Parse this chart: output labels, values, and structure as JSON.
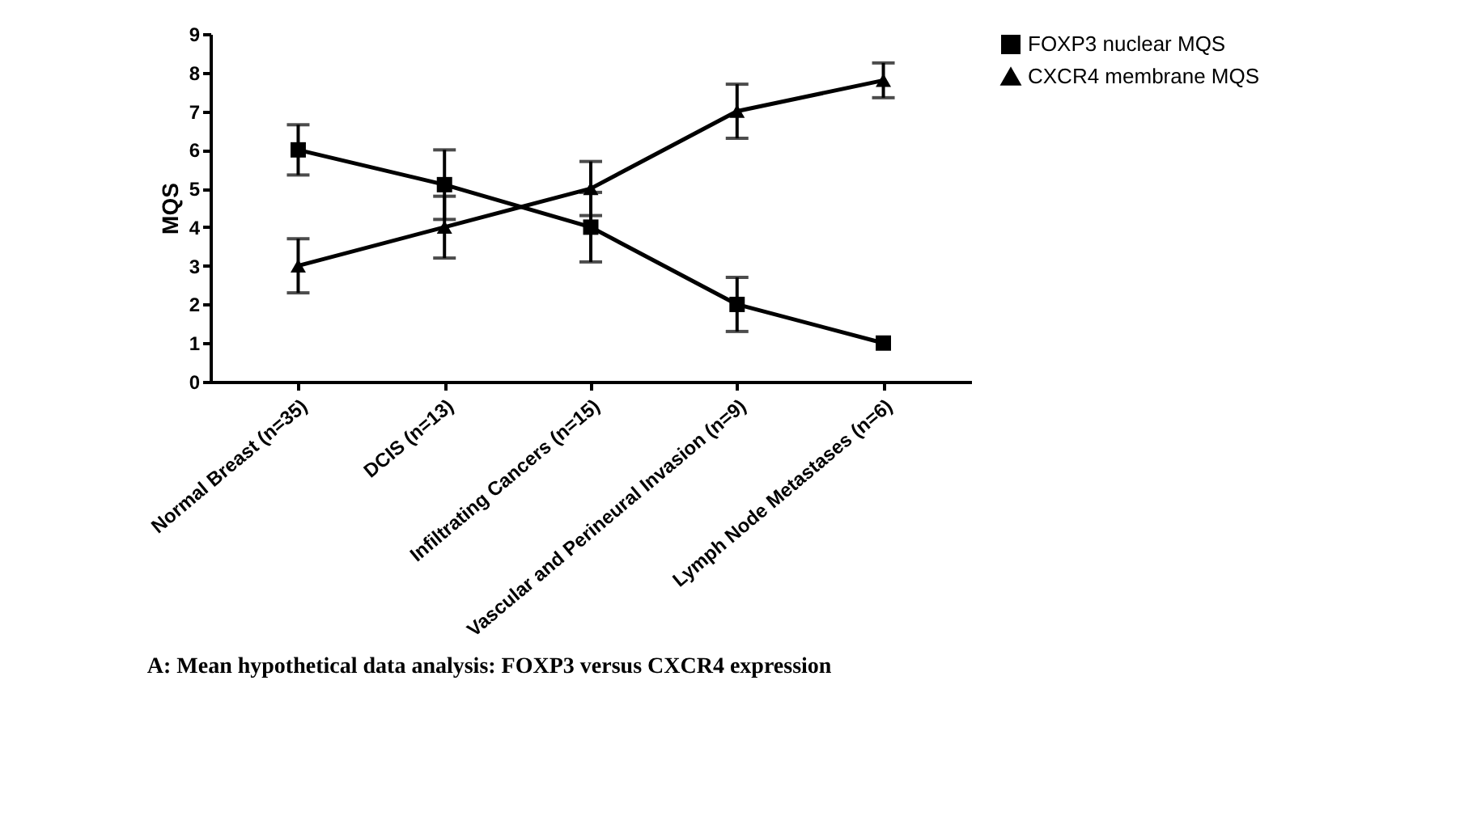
{
  "chart_data": {
    "type": "line",
    "ylabel": "MQS",
    "categories": [
      "Normal Breast (n=35)",
      "DCIS (n=13)",
      "Infiltrating Cancers (n=15)",
      "Vascular and Perineural Invasion (n=9)",
      "Lymph Node Metastases (n=6)"
    ],
    "series": [
      {
        "name": "FOXP3 nuclear MQS",
        "color": "#000000",
        "marker": "square",
        "values": [
          6,
          5.1,
          4,
          2,
          1
        ],
        "errors": [
          0.65,
          0.9,
          0.9,
          0.7,
          null
        ]
      },
      {
        "name": "CXCR4 membrane MQS",
        "color": "#000000",
        "marker": "triangle",
        "values": [
          3,
          4,
          5,
          7,
          7.8
        ],
        "errors": [
          0.7,
          0.8,
          0.7,
          0.7,
          0.45
        ]
      }
    ],
    "ylim": [
      0,
      9
    ],
    "yticks": [
      0,
      1,
      2,
      3,
      4,
      5,
      6,
      7,
      8,
      9
    ],
    "grid": false,
    "legend": "top right",
    "line_style": "solid",
    "annotations": [
      "A: Mean hypothetical data analysis: FOXP3 versus CXCR4 expression"
    ]
  }
}
